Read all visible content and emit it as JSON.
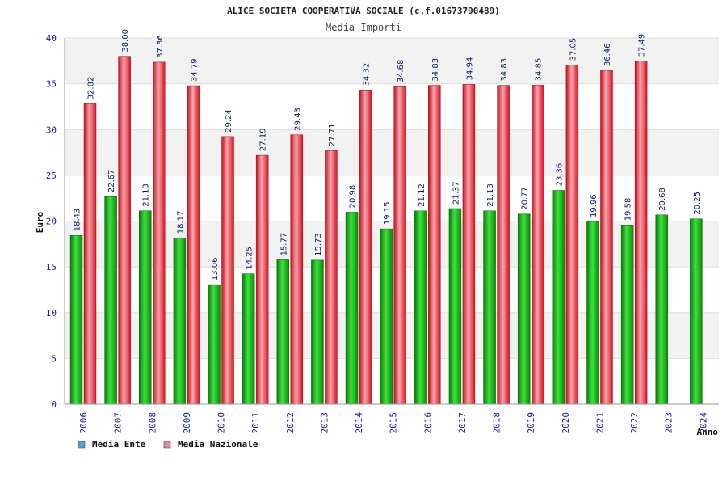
{
  "chart_data": {
    "type": "bar",
    "title": "ALICE SOCIETA COOPERATIVA SOCIALE (c.f.01673790489)",
    "subtitle": "Media Importi",
    "ylabel": "Euro",
    "xlabel": "Anno",
    "ylim": [
      0,
      40
    ],
    "yticks": [
      "0",
      "5",
      "10",
      "15",
      "20",
      "25",
      "30",
      "35",
      "40"
    ],
    "ytick_values": [
      0,
      5,
      10,
      15,
      20,
      25,
      30,
      35,
      40
    ],
    "categories": [
      "2006",
      "2007",
      "2008",
      "2009",
      "2010",
      "2011",
      "2012",
      "2013",
      "2014",
      "2015",
      "2016",
      "2017",
      "2018",
      "2019",
      "2020",
      "2021",
      "2022",
      "2023",
      "2024"
    ],
    "series": [
      {
        "name": "Media Ente",
        "color": "#22bb22",
        "values": [
          18.43,
          22.67,
          21.13,
          18.17,
          13.06,
          14.25,
          15.77,
          15.73,
          20.98,
          19.15,
          21.12,
          21.37,
          21.13,
          20.77,
          23.36,
          19.96,
          19.58,
          20.68,
          20.25
        ],
        "labels": [
          "18.43",
          "22.67",
          "21.13",
          "18.17",
          "13.06",
          "14.25",
          "15.77",
          "15.73",
          "20.98",
          "19.15",
          "21.12",
          "21.37",
          "21.13",
          "20.77",
          "23.36",
          "19.96",
          "19.58",
          "20.68",
          "20.25"
        ]
      },
      {
        "name": "Media Nazionale",
        "color": "#ee2233",
        "values": [
          32.82,
          38.0,
          37.36,
          34.79,
          29.24,
          27.19,
          29.43,
          27.71,
          34.32,
          34.68,
          34.83,
          34.94,
          34.83,
          34.85,
          37.05,
          36.46,
          37.49,
          null,
          null
        ],
        "labels": [
          "32.82",
          "38.00",
          "37.36",
          "34.79",
          "29.24",
          "27.19",
          "29.43",
          "27.71",
          "34.32",
          "34.68",
          "34.83",
          "34.94",
          "34.83",
          "34.85",
          "37.05",
          "36.46",
          "37.49",
          null,
          null
        ]
      }
    ],
    "legend": [
      {
        "label": "Media Ente",
        "color": "#5a9ee8"
      },
      {
        "label": "Media Nazionale",
        "color": "#e08ab0"
      }
    ],
    "legend_position": "bottom-left",
    "grid": true
  }
}
